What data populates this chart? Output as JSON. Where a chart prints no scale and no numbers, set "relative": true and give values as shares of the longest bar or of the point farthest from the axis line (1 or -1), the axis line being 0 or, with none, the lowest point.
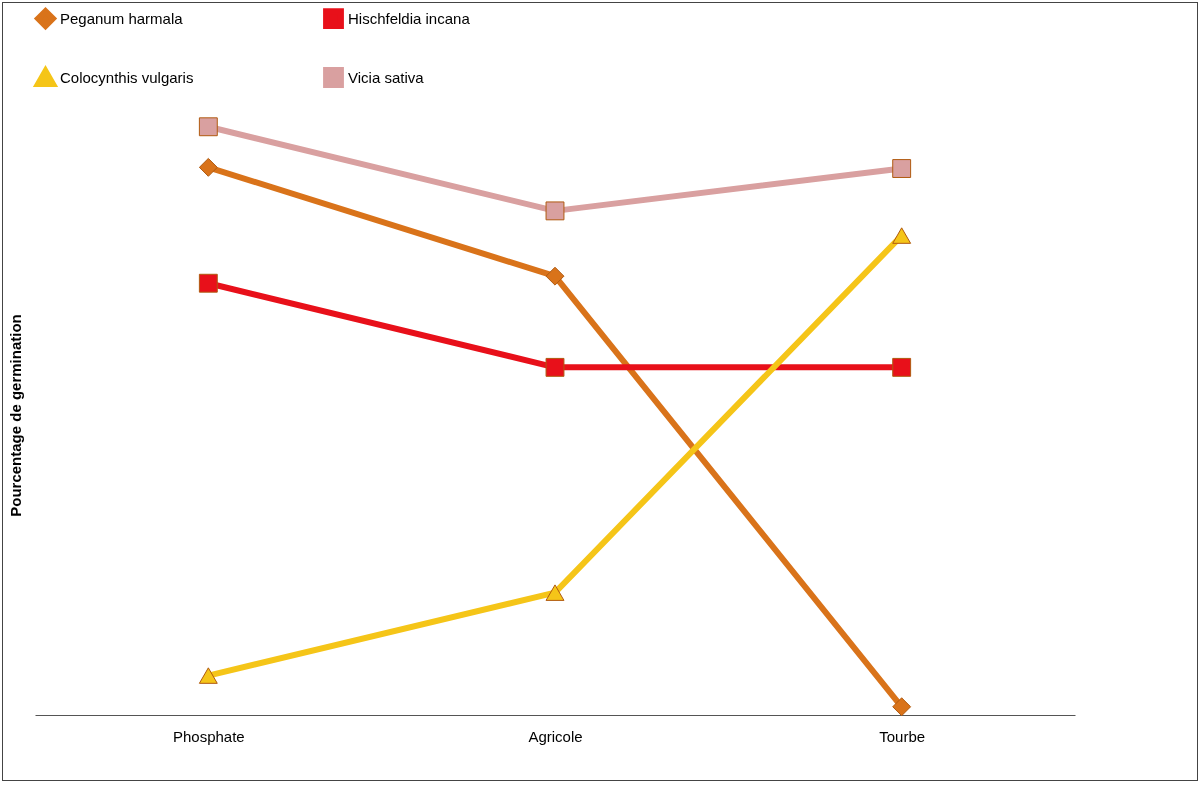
{
  "chart_data": {
    "type": "line",
    "relative": true,
    "ylabel": "Pourcentage de germination",
    "categories": [
      "Phosphate",
      "Agricole",
      "Tourbe"
    ],
    "legend": "top",
    "grid": false,
    "series": [
      {
        "name": "Peganum harmala",
        "color": "#d9731a",
        "marker": "diamond",
        "values": [
          0.931,
          0.746,
          0.014
        ]
      },
      {
        "name": "Hischfeldia incana",
        "color": "#e8101a",
        "marker": "square",
        "values": [
          0.734,
          0.591,
          0.591
        ]
      },
      {
        "name": "Colocynthis vulgaris",
        "color": "#f5c518",
        "marker": "triangle",
        "values": [
          0.067,
          0.208,
          0.815
        ]
      },
      {
        "name": "Vicia sativa",
        "color": "#d9a0a0",
        "marker": "square",
        "values": [
          1,
          0.857,
          0.929
        ]
      }
    ]
  }
}
